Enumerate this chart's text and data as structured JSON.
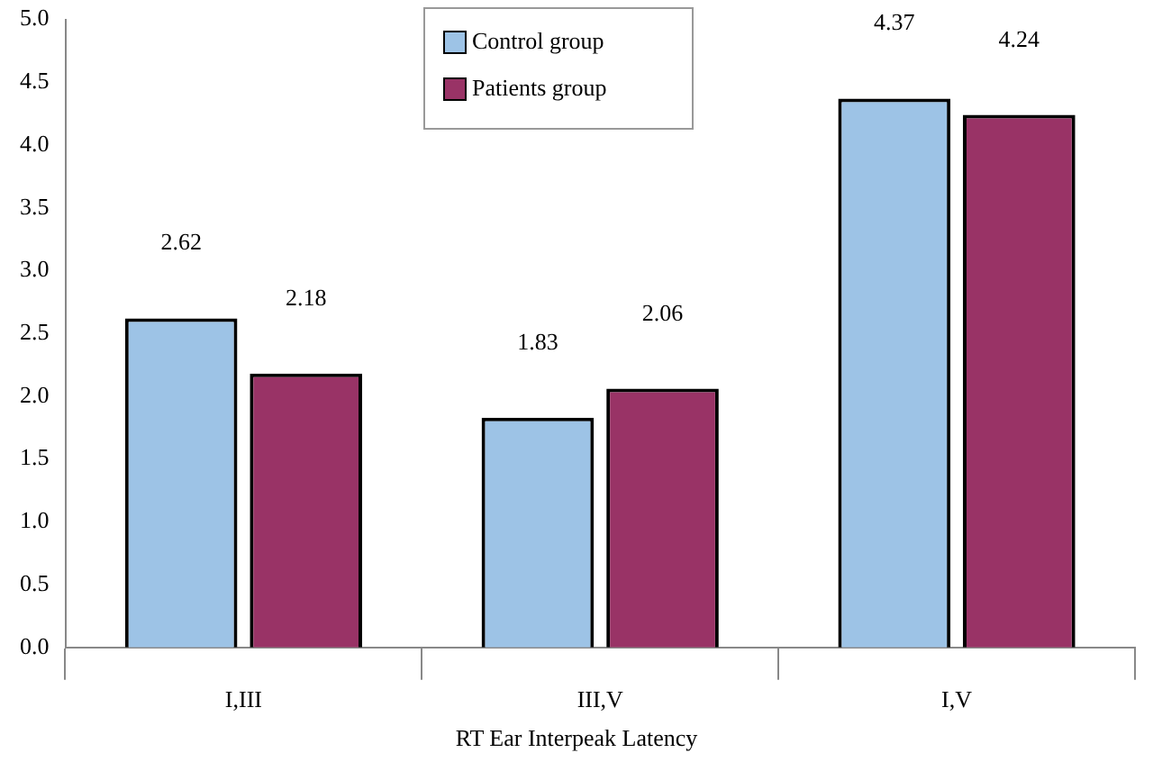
{
  "chart_data": {
    "type": "bar",
    "xlabel": "RT Ear Interpeak Latency",
    "categories": [
      "I,III",
      "III,V",
      "I,V"
    ],
    "series": [
      {
        "name": "Control group",
        "color": "#9dc3e6",
        "values": [
          2.62,
          1.83,
          4.37
        ]
      },
      {
        "name": "Patients group",
        "color": "#993366",
        "values": [
          2.18,
          2.06,
          4.24
        ]
      }
    ],
    "ylim": [
      0,
      5
    ],
    "yticks": [
      {
        "value": 0,
        "label": "0.0"
      },
      {
        "value": 0.5,
        "label": "0.5"
      },
      {
        "value": 1,
        "label": "1.0"
      },
      {
        "value": 1.5,
        "label": "1.5"
      },
      {
        "value": 2,
        "label": "2.0"
      },
      {
        "value": 2.5,
        "label": "2.5"
      },
      {
        "value": 3,
        "label": "3.0"
      },
      {
        "value": 3.5,
        "label": "3.5"
      },
      {
        "value": 4,
        "label": "4.0"
      },
      {
        "value": 4.5,
        "label": "4.5"
      },
      {
        "value": 5,
        "label": "5.0"
      }
    ],
    "data_labels": true,
    "grid": false,
    "legend": "top"
  }
}
